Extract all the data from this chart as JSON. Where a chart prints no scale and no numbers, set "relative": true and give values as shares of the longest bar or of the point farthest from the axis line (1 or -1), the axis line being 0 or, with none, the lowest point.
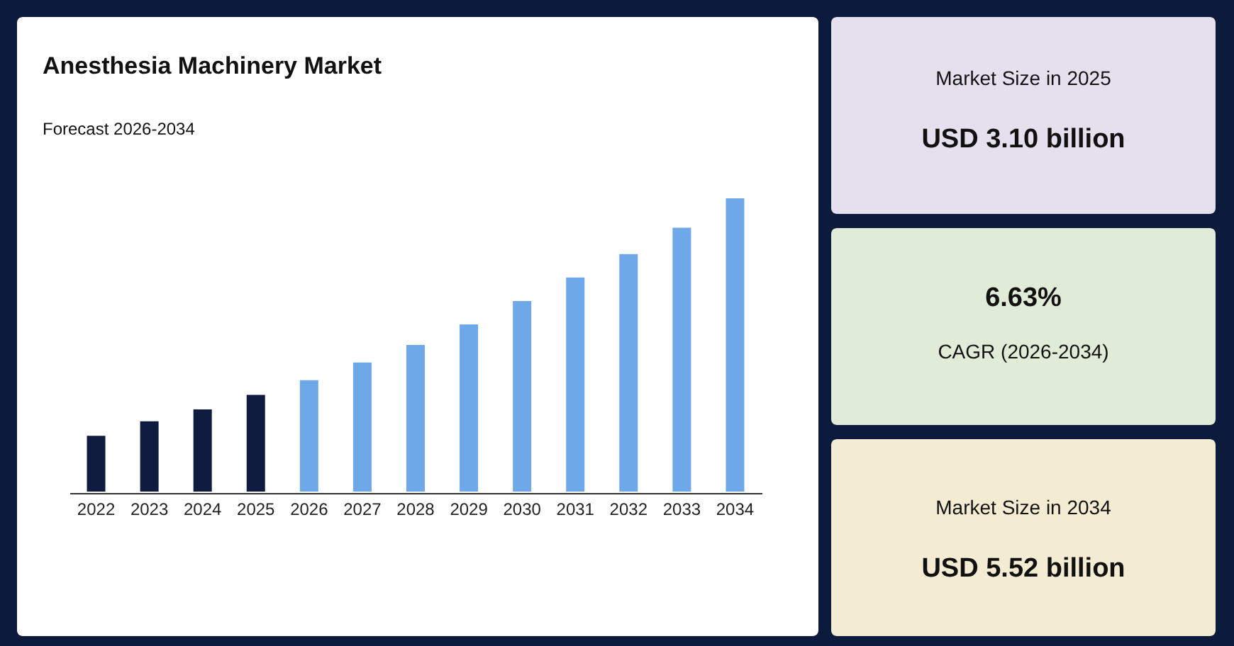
{
  "chart_data": [
    {
      "type": "bar",
      "title": "Anesthesia Machinery Market",
      "subtitle": "Forecast 2026-2034",
      "relative": true,
      "categories": [
        "2022",
        "2023",
        "2024",
        "2025",
        "2026",
        "2027",
        "2028",
        "2029",
        "2030",
        "2031",
        "2032",
        "2033",
        "2034"
      ],
      "values": [
        0.19,
        0.24,
        0.28,
        0.33,
        0.38,
        0.44,
        0.5,
        0.57,
        0.65,
        0.73,
        0.81,
        0.9,
        1
      ],
      "colors": [
        "#101c3f",
        "#101c3f",
        "#101c3f",
        "#101c3f",
        "#6fa8e8",
        "#6fa8e8",
        "#6fa8e8",
        "#6fa8e8",
        "#6fa8e8",
        "#6fa8e8",
        "#6fa8e8",
        "#6fa8e8",
        "#6fa8e8"
      ]
    },
    {
      "type": "other",
      "annotations": [
        "Market Size in 2025",
        "USD 3.10 billion"
      ]
    },
    {
      "type": "other",
      "annotations": [
        "6.63%",
        "CAGR (2026-2034)"
      ]
    },
    {
      "type": "other",
      "annotations": [
        "Market Size in 2034",
        "USD 5.52 billion"
      ]
    }
  ]
}
